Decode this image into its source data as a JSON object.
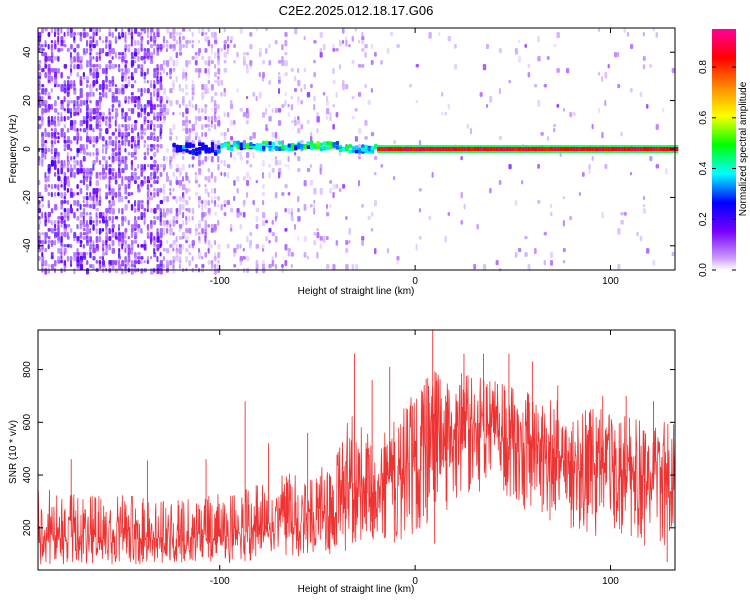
{
  "title": "C2E2.2025.012.18.17.G06",
  "chart_data": [
    {
      "type": "heatmap",
      "xlabel": "Height of straight line (km)",
      "ylabel": "Frequency (Hz)",
      "xlim": [
        -193,
        133
      ],
      "ylim": [
        -50,
        50
      ],
      "x_ticks": [
        -100,
        0,
        100
      ],
      "y_ticks": [
        -40,
        -20,
        0,
        20,
        40
      ],
      "x_tick_labels": [
        "-100",
        "0",
        "100"
      ],
      "y_tick_labels": [
        "-40",
        "-20",
        "0",
        "20",
        "40"
      ],
      "colorbar": {
        "label": "Normalized spectral amplitude",
        "range": [
          0,
          0.95
        ],
        "ticks": [
          0,
          0.2,
          0.4,
          0.6,
          0.8
        ],
        "tick_labels": [
          "0.0",
          "0.2",
          "0.4",
          "0.6",
          "0.8"
        ],
        "colors": [
          "#ffffff",
          "#7700ff",
          "#0000ff",
          "#00ffff",
          "#00ff00",
          "#ffff00",
          "#ff8800",
          "#ff0000",
          "#ff00aa"
        ]
      },
      "features": [
        {
          "region": "x < -100 km",
          "description": "broadband purple noise across all frequencies"
        },
        {
          "region": "-120 to -20 km",
          "description": "signal line near 0 Hz, blue-green, scattered"
        },
        {
          "region": "0 to 133 km",
          "description": "strong red line at ~0 Hz"
        }
      ]
    },
    {
      "type": "line",
      "xlabel": "Height of straight line (km)",
      "ylabel": "SNR (10 * v/v)",
      "xlim": [
        -193,
        133
      ],
      "ylim": [
        40,
        950
      ],
      "x_ticks": [
        -100,
        0,
        100
      ],
      "y_ticks": [
        200,
        400,
        600,
        800
      ],
      "x_tick_labels": [
        "-100",
        "0",
        "100"
      ],
      "y_tick_labels": [
        "200",
        "400",
        "600",
        "800"
      ],
      "series": [
        {
          "color": "#ee3333",
          "x": [
            -193,
            -180,
            -160,
            -140,
            -120,
            -100,
            -90,
            -80,
            -70,
            -60,
            -50,
            -40,
            -35,
            -30,
            -25,
            -20,
            -15,
            -10,
            -5,
            0,
            5,
            10,
            20,
            30,
            40,
            50,
            60,
            70,
            80,
            90,
            100,
            110,
            120,
            133
          ],
          "upper": [
            360,
            330,
            320,
            330,
            310,
            330,
            340,
            380,
            420,
            400,
            420,
            480,
            640,
            620,
            560,
            560,
            600,
            620,
            680,
            720,
            760,
            800,
            790,
            780,
            760,
            740,
            720,
            700,
            680,
            660,
            640,
            620,
            600,
            620
          ],
          "lower": [
            60,
            60,
            60,
            60,
            60,
            60,
            70,
            80,
            90,
            90,
            100,
            100,
            110,
            120,
            140,
            160,
            150,
            100,
            160,
            180,
            200,
            230,
            280,
            330,
            330,
            290,
            240,
            200,
            180,
            170,
            160,
            150,
            120,
            140
          ],
          "center": [
            170,
            165,
            160,
            165,
            160,
            170,
            180,
            200,
            230,
            220,
            240,
            270,
            340,
            330,
            320,
            340,
            380,
            390,
            430,
            470,
            520,
            560,
            570,
            570,
            560,
            530,
            500,
            470,
            450,
            440,
            420,
            410,
            400,
            410
          ],
          "spikes": [
            {
              "x": -176,
              "y": 460
            },
            {
              "x": -137,
              "y": 455
            },
            {
              "x": -107,
              "y": 460
            },
            {
              "x": -87,
              "y": 680
            },
            {
              "x": -75,
              "y": 520
            },
            {
              "x": -55,
              "y": 560
            },
            {
              "x": -31,
              "y": 860
            },
            {
              "x": -22,
              "y": 760
            },
            {
              "x": -13,
              "y": 810
            },
            {
              "x": 9,
              "y": 950
            },
            {
              "x": 25,
              "y": 860
            },
            {
              "x": 35,
              "y": 860
            },
            {
              "x": 48,
              "y": 860
            },
            {
              "x": 60,
              "y": 830
            },
            {
              "x": 73,
              "y": 740
            },
            {
              "x": 96,
              "y": 700
            },
            {
              "x": 108,
              "y": 700
            },
            {
              "x": 122,
              "y": 680
            },
            {
              "x": 10,
              "y": 140
            },
            {
              "x": 65,
              "y": 260
            },
            {
              "x": 129,
              "y": 70
            }
          ]
        }
      ]
    }
  ]
}
